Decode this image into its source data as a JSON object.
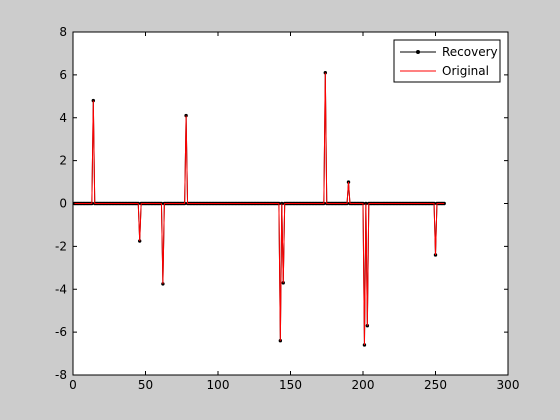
{
  "chart_data": {
    "type": "line",
    "title": "",
    "xlabel": "",
    "ylabel": "",
    "xlim": [
      0,
      300
    ],
    "ylim": [
      -8,
      8
    ],
    "xticks": [
      0,
      50,
      100,
      150,
      200,
      250,
      300
    ],
    "yticks": [
      -8,
      -6,
      -4,
      -2,
      0,
      2,
      4,
      6,
      8
    ],
    "grid": false,
    "legend_position": "top-right",
    "n_points": 256,
    "series": [
      {
        "name": "Recovery",
        "style": "line-with-dot-markers",
        "color": "#000000",
        "spikes": [
          {
            "x": 14,
            "y": 4.8
          },
          {
            "x": 46,
            "y": -1.75
          },
          {
            "x": 62,
            "y": -3.75
          },
          {
            "x": 78,
            "y": 4.1
          },
          {
            "x": 143,
            "y": -6.4
          },
          {
            "x": 145,
            "y": -3.7
          },
          {
            "x": 174,
            "y": 6.1
          },
          {
            "x": 190,
            "y": 1.0
          },
          {
            "x": 201,
            "y": -6.6
          },
          {
            "x": 203,
            "y": -5.7
          },
          {
            "x": 250,
            "y": -2.4
          }
        ]
      },
      {
        "name": "Original",
        "style": "line",
        "color": "#ff0000",
        "spikes": [
          {
            "x": 14,
            "y": 4.8
          },
          {
            "x": 46,
            "y": -1.75
          },
          {
            "x": 62,
            "y": -3.75
          },
          {
            "x": 78,
            "y": 4.1
          },
          {
            "x": 143,
            "y": -6.4
          },
          {
            "x": 145,
            "y": -3.7
          },
          {
            "x": 174,
            "y": 6.1
          },
          {
            "x": 190,
            "y": 1.0
          },
          {
            "x": 201,
            "y": -6.6
          },
          {
            "x": 203,
            "y": -5.7
          },
          {
            "x": 250,
            "y": -2.4
          }
        ]
      }
    ]
  }
}
